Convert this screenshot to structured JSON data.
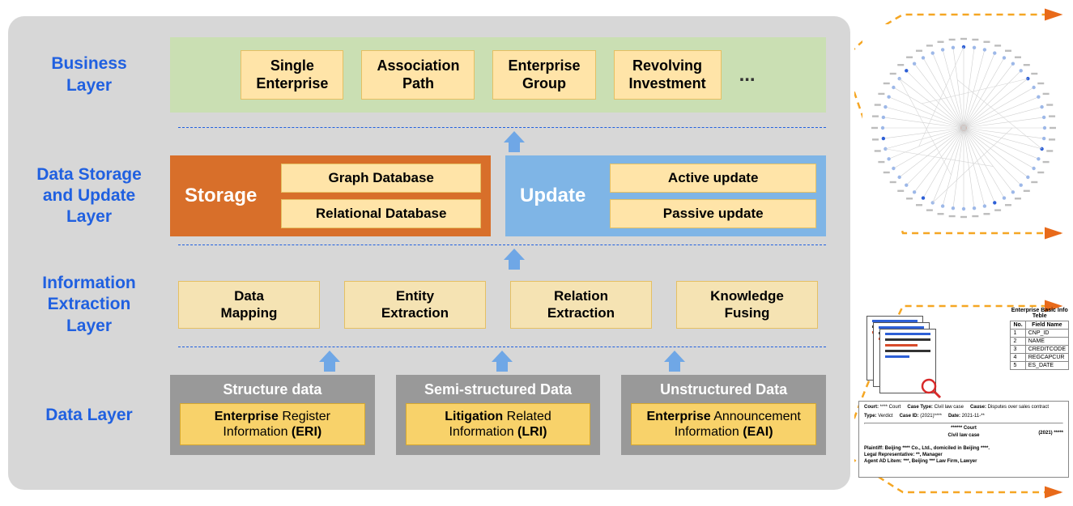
{
  "colors": {
    "panel_bg": "#d7d7d7",
    "label_blue": "#2060e0",
    "business_bg": "#cadfb3",
    "yellow_box": "#ffe4a8",
    "yellow_border": "#e5c063",
    "storage_orange": "#d86f2a",
    "update_blue": "#7fb5e6",
    "ie_box": "#f5e3b3",
    "data_gray": "#999999",
    "data_yellow": "#f8d26a",
    "arrow_blue": "#6fa7e6",
    "dash_orange": "#f5a623",
    "arrowhead_orange": "#e86a1a"
  },
  "layers": {
    "business": {
      "label": "Business\nLayer",
      "items": [
        "Single\nEnterprise",
        "Association\nPath",
        "Enterprise\nGroup",
        "Revolving\nInvestment"
      ],
      "ellipsis": "..."
    },
    "storage_update": {
      "label": "Data Storage\nand Update\nLayer",
      "storage": {
        "title": "Storage",
        "items": [
          "Graph Database",
          "Relational Database"
        ]
      },
      "update": {
        "title": "Update",
        "items": [
          "Active update",
          "Passive update"
        ]
      }
    },
    "ie": {
      "label": "Information\nExtraction\nLayer",
      "items": [
        "Data\nMapping",
        "Entity\nExtraction",
        "Relation\nExtraction",
        "Knowledge\nFusing"
      ]
    },
    "data": {
      "label": "Data Layer",
      "blocks": [
        {
          "title": "Structure data",
          "item_prefix": "Enterprise",
          "item_rest": " Register\nInformation ",
          "abbr": "(ERI)"
        },
        {
          "title": "Semi-structured Data",
          "item_prefix": "Litigation",
          "item_rest": " Related\nInformation ",
          "abbr": "(LRI)"
        },
        {
          "title": "Unstructured Data",
          "item_prefix": "Enterprise",
          "item_rest": " Announcement\nInformation ",
          "abbr": "(EAI)"
        }
      ]
    }
  },
  "right": {
    "table": {
      "caption": "Enterprise Basic Info Teble",
      "headers": [
        "No.",
        "Field Name"
      ],
      "rows": [
        [
          "1",
          "CNP_ID"
        ],
        [
          "2",
          "NAME"
        ],
        [
          "3",
          "CREDITCODE"
        ],
        [
          "4",
          "REGCAPCUR"
        ],
        [
          "5",
          "ES_DATE"
        ]
      ]
    },
    "case": {
      "court_lbl": "Court:",
      "court_val": "**** Court",
      "type_lbl": "Type:",
      "type_val": "Verdict",
      "casetype_lbl": "Case Type:",
      "casetype_val": "Civil law case",
      "caseid_lbl": "Case ID:",
      "caseid_val": "(2021)****",
      "cause_lbl": "Cause:",
      "cause_val": "Disputes over sales contract",
      "date_lbl": "Date:",
      "date_val": "2021-11-**",
      "title1": "****** Court",
      "title2": "Civil law case",
      "year": "(2021) *****",
      "lines": [
        "Plaintiff: Beijing **** Co., Ltd., domiciled in Beijing ****.",
        "Legal Representative: **, Manager",
        "Agent AD Litem: ***, Beijing *** Law Firm, Lawyer"
      ]
    }
  }
}
